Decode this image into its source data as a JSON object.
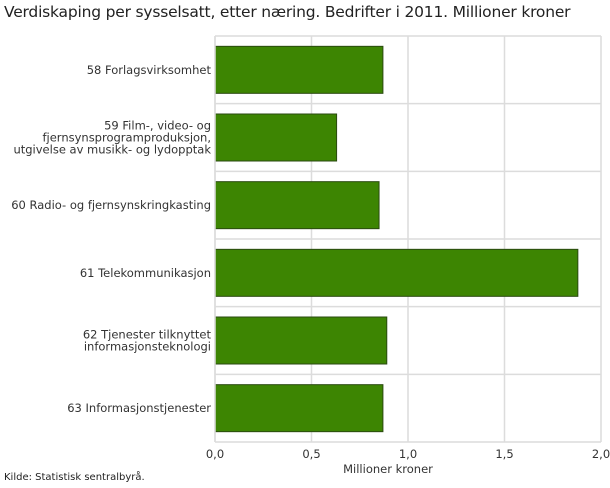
{
  "chart_data": {
    "type": "bar",
    "orientation": "horizontal",
    "title": "Verdiskaping per sysselsatt, etter næring. Bedrifter i 2011. Millioner kroner",
    "categories": [
      [
        "58 Forlagsvirksomhet"
      ],
      [
        "59 Film-, video- og",
        "fjernsynsprogramproduksjon,",
        "utgivelse av musikk- og lydopptak"
      ],
      [
        "60 Radio- og fjernsynskringkasting"
      ],
      [
        "61 Telekommunikasjon"
      ],
      [
        "62 Tjenester tilknyttet",
        "informasjonsteknologi"
      ],
      [
        "63 Informasjonstjenester"
      ]
    ],
    "values": [
      0.87,
      0.63,
      0.85,
      1.88,
      0.89,
      0.87
    ],
    "xlabel": "Millioner kroner",
    "ylabel": "",
    "xlim": [
      0,
      2.0
    ],
    "xticks": [
      "0,0",
      "0,5",
      "1,0",
      "1,5",
      "2,0"
    ],
    "grid": true,
    "bar_color": "#3d8502",
    "source": "Kilde: Statistisk sentralbyrå."
  }
}
